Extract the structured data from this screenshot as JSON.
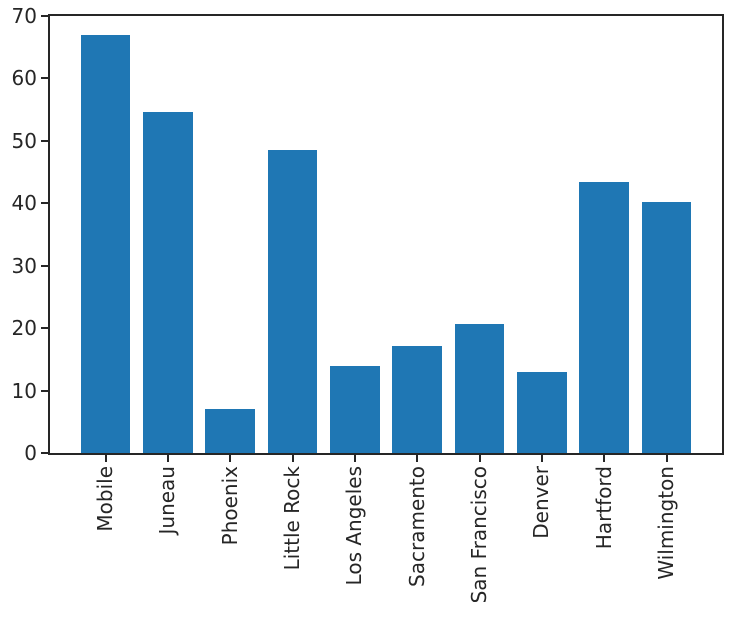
{
  "chart_data": {
    "type": "bar",
    "categories": [
      "Mobile",
      "Juneau",
      "Phoenix",
      "Little Rock",
      "Los Angeles",
      "Sacramento",
      "San Francisco",
      "Denver",
      "Hartford",
      "Wilmington"
    ],
    "values": [
      67.0,
      54.7,
      7.0,
      48.52,
      14.0,
      17.22,
      20.7,
      13.0,
      43.4,
      40.2
    ],
    "title": "",
    "xlabel": "",
    "ylabel": "",
    "ylim": [
      0,
      70
    ],
    "yticks": [
      0,
      10,
      20,
      30,
      40,
      50,
      60,
      70
    ],
    "x_tick_labels": [
      "Mobile",
      "Juneau",
      "Phoenix",
      "Little Rock",
      "Los Angeles",
      "Sacramento",
      "San Francisco",
      "Denver",
      "Hartford",
      "Wilmington"
    ],
    "x_tick_rotation_deg": 90,
    "bar_width_fraction": 0.8,
    "grid": false,
    "legend": null,
    "colors": {
      "bar": "#1f77b4",
      "axis": "#262626",
      "tick_label": "#262626",
      "background": "#ffffff"
    }
  }
}
